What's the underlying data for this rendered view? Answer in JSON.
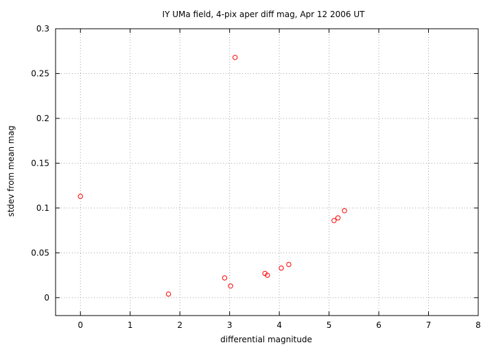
{
  "chart_data": {
    "type": "scatter",
    "title": "IY UMa field,  4-pix aper diff mag, Apr 12 2006 UT",
    "xlabel": "differential magnitude",
    "ylabel": "stdev from mean mag",
    "xlim": [
      -0.5,
      8
    ],
    "ylim": [
      -0.02,
      0.3
    ],
    "xticks": [
      "0",
      "1",
      "2",
      "3",
      "4",
      "5",
      "6",
      "7",
      "8"
    ],
    "yticks": [
      "0",
      "0.05",
      "0.1",
      "0.15",
      "0.2",
      "0.25",
      "0.3"
    ],
    "grid": true,
    "marker_color": "#ff0000",
    "points": [
      {
        "x": 0.0,
        "y": 0.113
      },
      {
        "x": 1.77,
        "y": 0.004
      },
      {
        "x": 2.9,
        "y": 0.022
      },
      {
        "x": 3.02,
        "y": 0.013
      },
      {
        "x": 3.11,
        "y": 0.268
      },
      {
        "x": 3.71,
        "y": 0.027
      },
      {
        "x": 3.76,
        "y": 0.025
      },
      {
        "x": 4.04,
        "y": 0.033
      },
      {
        "x": 4.19,
        "y": 0.037
      },
      {
        "x": 5.1,
        "y": 0.086
      },
      {
        "x": 5.18,
        "y": 0.089
      },
      {
        "x": 5.31,
        "y": 0.097
      }
    ]
  }
}
